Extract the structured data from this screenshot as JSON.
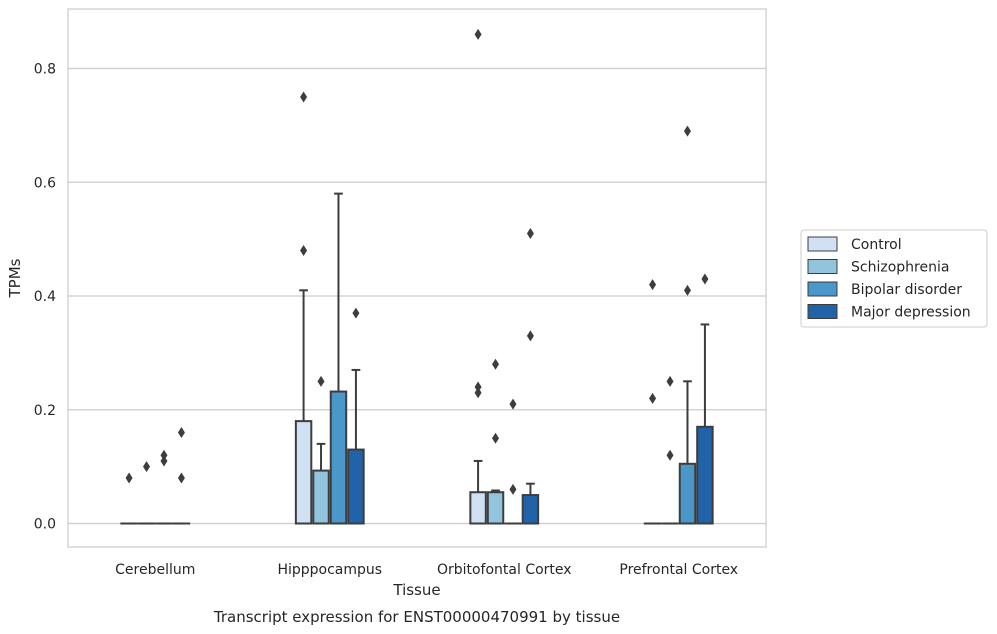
{
  "chart_data": {
    "type": "box",
    "title": "",
    "xlabel": "Tissue",
    "ylabel": "TPMs",
    "caption": "Transcript expression for ENST00000470991 by tissue",
    "categories": [
      "Cerebellum",
      "Hipppocampus",
      "Orbitofontal Cortex",
      "Prefrontal Cortex"
    ],
    "ylim": [
      -0.04,
      0.9
    ],
    "yticks": [
      0.0,
      0.2,
      0.4,
      0.6,
      0.8
    ],
    "ytick_labels": [
      "0.0",
      "0.2",
      "0.4",
      "0.6",
      "0.8"
    ],
    "grid": true,
    "legend_position": "right",
    "series": [
      {
        "name": "Control",
        "color": "#cfe1f2",
        "boxes": [
          {
            "q1": 0,
            "median": 0,
            "q3": 0,
            "whisker_low": 0,
            "whisker_high": 0,
            "outliers": [
              0.08
            ]
          },
          {
            "q1": 0,
            "median": 0,
            "q3": 0.18,
            "whisker_low": 0,
            "whisker_high": 0.41,
            "outliers": [
              0.48,
              0.75
            ]
          },
          {
            "q1": 0,
            "median": 0,
            "q3": 0.055,
            "whisker_low": 0,
            "whisker_high": 0.11,
            "outliers": [
              0.23,
              0.24,
              0.86
            ]
          },
          {
            "q1": 0,
            "median": 0,
            "q3": 0,
            "whisker_low": 0,
            "whisker_high": 0,
            "outliers": [
              0.22,
              0.42
            ]
          }
        ]
      },
      {
        "name": "Schizophrenia",
        "color": "#93c4de",
        "boxes": [
          {
            "q1": 0,
            "median": 0,
            "q3": 0,
            "whisker_low": 0,
            "whisker_high": 0,
            "outliers": [
              0.1
            ]
          },
          {
            "q1": 0,
            "median": 0,
            "q3": 0.093,
            "whisker_low": 0,
            "whisker_high": 0.14,
            "outliers": [
              0.25
            ]
          },
          {
            "q1": 0,
            "median": 0,
            "q3": 0.055,
            "whisker_low": 0,
            "whisker_high": 0.058,
            "outliers": [
              0.15,
              0.28
            ]
          },
          {
            "q1": 0,
            "median": 0,
            "q3": 0,
            "whisker_low": 0,
            "whisker_high": 0,
            "outliers": [
              0.12,
              0.25
            ]
          }
        ]
      },
      {
        "name": "Bipolar disorder",
        "color": "#4a98c9",
        "boxes": [
          {
            "q1": 0,
            "median": 0,
            "q3": 0,
            "whisker_low": 0,
            "whisker_high": 0,
            "outliers": [
              0.11,
              0.12
            ]
          },
          {
            "q1": 0,
            "median": 0,
            "q3": 0.232,
            "whisker_low": 0,
            "whisker_high": 0.58,
            "outliers": []
          },
          {
            "q1": 0,
            "median": 0,
            "q3": 0,
            "whisker_low": 0,
            "whisker_high": 0,
            "outliers": [
              0.06,
              0.21
            ]
          },
          {
            "q1": 0,
            "median": 0,
            "q3": 0.105,
            "whisker_low": 0,
            "whisker_high": 0.25,
            "outliers": [
              0.41,
              0.69
            ]
          }
        ]
      },
      {
        "name": "Major depression",
        "color": "#2163a8",
        "boxes": [
          {
            "q1": 0,
            "median": 0,
            "q3": 0,
            "whisker_low": 0,
            "whisker_high": 0,
            "outliers": [
              0.08,
              0.16
            ]
          },
          {
            "q1": 0,
            "median": 0,
            "q3": 0.13,
            "whisker_low": 0,
            "whisker_high": 0.27,
            "outliers": [
              0.37
            ]
          },
          {
            "q1": 0,
            "median": 0,
            "q3": 0.05,
            "whisker_low": 0,
            "whisker_high": 0.07,
            "outliers": [
              0.33,
              0.51
            ]
          },
          {
            "q1": 0,
            "median": 0,
            "q3": 0.17,
            "whisker_low": 0,
            "whisker_high": 0.35,
            "outliers": [
              0.43
            ]
          }
        ]
      }
    ]
  }
}
